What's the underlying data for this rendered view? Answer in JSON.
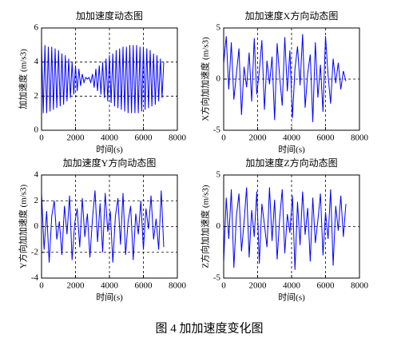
{
  "chart_data": [
    {
      "type": "line",
      "title": "加加速度动态图",
      "xlabel": "时间(s)",
      "ylabel": "加加速度 (m/s3)",
      "color": "#0000ff",
      "grid": true,
      "xlim": [
        0,
        8000
      ],
      "xticks": [
        0,
        2000,
        4000,
        6000,
        8000
      ],
      "ylim": [
        0,
        6
      ],
      "yticks": [
        0,
        2,
        4,
        6
      ],
      "x": [
        0,
        100,
        200,
        300,
        400,
        500,
        600,
        700,
        800,
        900,
        1000,
        1100,
        1200,
        1300,
        1400,
        1500,
        1600,
        1700,
        1800,
        1900,
        2000,
        2100,
        2200,
        2300,
        2400,
        2500,
        2600,
        2700,
        2800,
        2900,
        3000,
        3100,
        3200,
        3300,
        3400,
        3500,
        3600,
        3700,
        3800,
        3900,
        4000,
        4100,
        4200,
        4300,
        4400,
        4500,
        4600,
        4700,
        4800,
        4900,
        5000,
        5100,
        5200,
        5300,
        5400,
        5500,
        5600,
        5700,
        5800,
        5900,
        6000,
        6100,
        6200,
        6300,
        6400,
        6500,
        6600,
        6700,
        6800,
        6900,
        7000,
        7100,
        7200
      ],
      "values": [
        5.0,
        1.0,
        5.0,
        1.0,
        4.9,
        1.1,
        4.9,
        1.2,
        4.8,
        1.3,
        4.7,
        1.4,
        4.5,
        1.5,
        4.4,
        1.7,
        4.2,
        1.9,
        4.0,
        2.1,
        3.8,
        2.3,
        3.6,
        2.6,
        3.3,
        2.8,
        3.1,
        3.0,
        3.1,
        2.8,
        3.3,
        2.5,
        3.6,
        2.3,
        3.8,
        2.1,
        4.0,
        1.9,
        4.2,
        1.7,
        4.4,
        1.6,
        4.5,
        1.4,
        4.7,
        1.3,
        4.8,
        1.2,
        4.9,
        1.1,
        4.9,
        1.0,
        5.0,
        1.0,
        5.0,
        1.0,
        5.0,
        1.0,
        4.9,
        1.1,
        4.9,
        1.2,
        4.8,
        1.3,
        4.7,
        1.4,
        4.5,
        1.5,
        4.4,
        1.7,
        4.2,
        1.9,
        4.0
      ]
    },
    {
      "type": "line",
      "title": "加加速度X方向动态图",
      "xlabel": "时间(s)",
      "ylabel": "X方向加加速度 (m/s3)",
      "color": "#0000ff",
      "grid": true,
      "xlim": [
        0,
        8000
      ],
      "xticks": [
        0,
        2000,
        4000,
        6000,
        8000
      ],
      "ylim": [
        -5,
        5
      ],
      "yticks": [
        -5,
        0,
        5
      ],
      "x": [
        0,
        150,
        300,
        450,
        600,
        750,
        900,
        1050,
        1200,
        1350,
        1500,
        1650,
        1800,
        1950,
        2100,
        2250,
        2400,
        2550,
        2700,
        2850,
        3000,
        3150,
        3300,
        3450,
        3600,
        3750,
        3900,
        4050,
        4200,
        4350,
        4500,
        4650,
        4800,
        4950,
        5100,
        5250,
        5400,
        5550,
        5700,
        5850,
        6000,
        6150,
        6300,
        6450,
        6600,
        6750,
        6900,
        7050,
        7200
      ],
      "values": [
        1.5,
        4.2,
        -1.0,
        3.6,
        -2.0,
        0.5,
        3.0,
        -3.5,
        1.2,
        -0.8,
        2.6,
        -2.2,
        4.0,
        -1.5,
        0.8,
        3.8,
        -3.0,
        1.8,
        -0.5,
        2.2,
        -4.0,
        3.5,
        0.2,
        -2.6,
        4.1,
        -1.2,
        2.8,
        -3.8,
        1.0,
        3.2,
        -0.6,
        4.4,
        -2.8,
        0.6,
        2.4,
        -4.2,
        3.6,
        -1.8,
        1.4,
        -3.2,
        4.2,
        0.4,
        -2.4,
        2.0,
        -0.4,
        1.6,
        -1.0,
        0.8,
        -0.2
      ]
    },
    {
      "type": "line",
      "title": "加加速度Y方向动态图",
      "xlabel": "时间(s)",
      "ylabel": "Y方向加加速度 (m/s3)",
      "color": "#0000ff",
      "grid": true,
      "xlim": [
        0,
        8000
      ],
      "xticks": [
        0,
        2000,
        4000,
        6000,
        8000
      ],
      "ylim": [
        -4,
        4
      ],
      "yticks": [
        -4,
        -2,
        0,
        2,
        4
      ],
      "x": [
        0,
        150,
        300,
        450,
        600,
        750,
        900,
        1050,
        1200,
        1350,
        1500,
        1650,
        1800,
        1950,
        2100,
        2250,
        2400,
        2550,
        2700,
        2850,
        3000,
        3150,
        3300,
        3450,
        3600,
        3750,
        3900,
        4050,
        4200,
        4350,
        4500,
        4650,
        4800,
        4950,
        5100,
        5250,
        5400,
        5550,
        5700,
        5850,
        6000,
        6150,
        6300,
        6450,
        6600,
        6750,
        6900,
        7050,
        7200
      ],
      "values": [
        2.6,
        -1.8,
        1.2,
        -2.8,
        0.8,
        2.0,
        -1.0,
        0.4,
        -2.2,
        1.6,
        -0.6,
        2.4,
        -2.6,
        0.2,
        1.4,
        -1.6,
        2.2,
        -0.8,
        1.0,
        -2.4,
        0.6,
        2.8,
        -1.2,
        1.8,
        -2.0,
        2.6,
        -0.4,
        1.2,
        -2.8,
        0.8,
        2.2,
        -1.4,
        2.6,
        -2.2,
        0.4,
        1.6,
        -2.6,
        1.0,
        -0.6,
        2.0,
        -1.8,
        1.4,
        -0.2,
        2.4,
        -1.0,
        0.6,
        -1.8,
        2.8,
        -1.6
      ]
    },
    {
      "type": "line",
      "title": "加加速度Z方向动态图",
      "xlabel": "时间(s)",
      "ylabel": "Z方向加加速度 (m/s3)",
      "color": "#0000ff",
      "grid": true,
      "xlim": [
        0,
        8000
      ],
      "xticks": [
        0,
        2000,
        4000,
        6000,
        8000
      ],
      "ylim": [
        -5,
        5
      ],
      "yticks": [
        -5,
        0,
        5
      ],
      "x": [
        0,
        150,
        300,
        450,
        600,
        750,
        900,
        1050,
        1200,
        1350,
        1500,
        1650,
        1800,
        1950,
        2100,
        2250,
        2400,
        2550,
        2700,
        2850,
        3000,
        3150,
        3300,
        3450,
        3600,
        3750,
        3900,
        4050,
        4200,
        4350,
        4500,
        4650,
        4800,
        4950,
        5100,
        5250,
        5400,
        5550,
        5700,
        5850,
        6000,
        6150,
        6300,
        6450,
        6600,
        6750,
        6900,
        7050,
        7200
      ],
      "values": [
        -3.5,
        2.8,
        -1.2,
        3.6,
        -4.0,
        1.0,
        3.2,
        -2.4,
        0.4,
        3.8,
        -3.0,
        1.6,
        -1.0,
        3.4,
        -3.6,
        2.2,
        0.2,
        -2.0,
        3.8,
        -1.4,
        2.6,
        -3.2,
        0.8,
        3.6,
        -2.6,
        1.2,
        -0.6,
        3.0,
        -4.2,
        2.4,
        -1.8,
        3.4,
        -0.8,
        1.8,
        -3.4,
        2.8,
        -1.6,
        0.6,
        3.2,
        -2.8,
        1.4,
        -1.2,
        3.6,
        -3.8,
        2.0,
        -0.4,
        3.0,
        -1.0,
        2.2
      ]
    }
  ],
  "caption": "图 4 加加速度变化图"
}
